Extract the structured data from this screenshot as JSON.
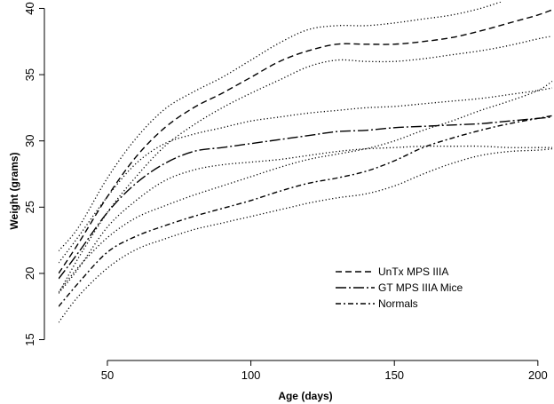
{
  "chart_data": {
    "type": "line",
    "title": "",
    "xlabel": "Age (days)",
    "ylabel": "Weight (grams)",
    "xlim": [
      33,
      205
    ],
    "ylim": [
      14.5,
      40.5
    ],
    "xticks": [
      50,
      100,
      150,
      200
    ],
    "yticks": [
      15,
      20,
      25,
      30,
      35,
      40
    ],
    "grid": false,
    "legend_position": "lower-right",
    "series": [
      {
        "name": "UnTx MPS IIIA",
        "role": "mean",
        "dash": "dashed",
        "x": [
          33,
          40,
          50,
          60,
          70,
          80,
          90,
          100,
          110,
          120,
          130,
          140,
          150,
          160,
          170,
          180,
          190,
          200,
          205
        ],
        "y": [
          20.0,
          22.3,
          25.8,
          28.8,
          31.0,
          32.5,
          33.6,
          34.8,
          36.0,
          36.8,
          37.3,
          37.3,
          37.3,
          37.5,
          37.8,
          38.3,
          38.9,
          39.5,
          39.9
        ]
      },
      {
        "name": "UnTx MPS IIIA upper band",
        "role": "confidence-upper",
        "dash": "dotted",
        "x": [
          33,
          40,
          50,
          60,
          70,
          80,
          90,
          100,
          110,
          120,
          130,
          140,
          150,
          160,
          170,
          180,
          190,
          195
        ],
        "y": [
          21.7,
          23.5,
          27.2,
          30.2,
          32.4,
          33.7,
          34.8,
          36.1,
          37.4,
          38.4,
          38.7,
          38.7,
          38.9,
          39.2,
          39.5,
          40.0,
          40.7,
          41.0
        ]
      },
      {
        "name": "UnTx MPS IIIA lower band",
        "role": "confidence-lower",
        "dash": "dotted",
        "x": [
          33,
          40,
          50,
          60,
          70,
          80,
          90,
          100,
          110,
          120,
          130,
          140,
          150,
          160,
          170,
          180,
          190,
          200,
          205
        ],
        "y": [
          18.5,
          21.2,
          24.6,
          27.3,
          29.6,
          31.2,
          32.5,
          33.6,
          34.6,
          35.6,
          36.1,
          36.0,
          36.0,
          36.2,
          36.5,
          36.8,
          37.2,
          37.7,
          37.9
        ]
      },
      {
        "name": "GT MPS IIIA Mice",
        "role": "mean",
        "dash": "long-dash-dot",
        "x": [
          33,
          40,
          50,
          60,
          70,
          80,
          90,
          100,
          110,
          120,
          130,
          140,
          150,
          160,
          170,
          180,
          190,
          200,
          205
        ],
        "y": [
          19.6,
          21.6,
          24.6,
          26.8,
          28.3,
          29.2,
          29.5,
          29.8,
          30.1,
          30.4,
          30.7,
          30.8,
          31.0,
          31.1,
          31.2,
          31.3,
          31.5,
          31.7,
          31.8
        ]
      },
      {
        "name": "GT MPS IIIA upper band",
        "role": "confidence-upper",
        "dash": "dotted",
        "x": [
          33,
          40,
          50,
          60,
          70,
          80,
          90,
          100,
          110,
          120,
          130,
          140,
          150,
          160,
          170,
          180,
          190,
          200,
          205
        ],
        "y": [
          20.8,
          22.8,
          25.8,
          28.3,
          29.8,
          30.5,
          31.0,
          31.5,
          31.8,
          32.1,
          32.3,
          32.5,
          32.6,
          32.8,
          33.0,
          33.2,
          33.5,
          33.8,
          34.0
        ]
      },
      {
        "name": "GT MPS IIIA lower band",
        "role": "confidence-lower",
        "dash": "dotted",
        "x": [
          33,
          40,
          50,
          60,
          70,
          80,
          90,
          100,
          110,
          120,
          130,
          140,
          150,
          160,
          170,
          180,
          190,
          200,
          205
        ],
        "y": [
          18.5,
          20.4,
          23.5,
          25.5,
          27.0,
          27.8,
          28.2,
          28.4,
          28.6,
          28.9,
          29.2,
          29.4,
          29.5,
          29.6,
          29.6,
          29.6,
          29.5,
          29.5,
          29.5
        ]
      },
      {
        "name": "Normals",
        "role": "mean",
        "dash": "short-dash-dot",
        "x": [
          33,
          40,
          50,
          60,
          70,
          80,
          90,
          100,
          110,
          120,
          130,
          140,
          150,
          160,
          170,
          180,
          190,
          200,
          205
        ],
        "y": [
          17.5,
          19.3,
          21.6,
          22.8,
          23.6,
          24.3,
          24.9,
          25.5,
          26.2,
          26.8,
          27.2,
          27.7,
          28.5,
          29.5,
          30.2,
          30.8,
          31.3,
          31.7,
          31.9
        ]
      },
      {
        "name": "Normals upper band",
        "role": "confidence-upper",
        "dash": "dotted",
        "x": [
          33,
          40,
          50,
          60,
          70,
          80,
          90,
          100,
          110,
          120,
          130,
          140,
          150,
          160,
          170,
          180,
          190,
          200,
          205
        ],
        "y": [
          18.6,
          20.5,
          22.7,
          24.2,
          25.1,
          25.9,
          26.6,
          27.3,
          28.0,
          28.6,
          29.0,
          29.4,
          30.0,
          30.8,
          31.5,
          32.3,
          33.0,
          33.8,
          34.5
        ]
      },
      {
        "name": "Normals lower band",
        "role": "confidence-lower",
        "dash": "dotted",
        "x": [
          33,
          40,
          50,
          60,
          70,
          80,
          90,
          100,
          110,
          120,
          130,
          140,
          150,
          160,
          170,
          180,
          190,
          200,
          205
        ],
        "y": [
          16.3,
          18.3,
          20.4,
          21.8,
          22.6,
          23.3,
          23.8,
          24.3,
          24.8,
          25.3,
          25.7,
          26.0,
          26.6,
          27.5,
          28.3,
          28.9,
          29.2,
          29.3,
          29.4
        ]
      }
    ],
    "legend": [
      {
        "label": "UnTx MPS IIIA",
        "dash": "dashed"
      },
      {
        "label": "GT MPS IIIA Mice",
        "dash": "long-dash-dot"
      },
      {
        "label": "Normals",
        "dash": "short-dash-dot"
      }
    ],
    "colors": {
      "line": "#000000",
      "background": "#ffffff"
    }
  }
}
